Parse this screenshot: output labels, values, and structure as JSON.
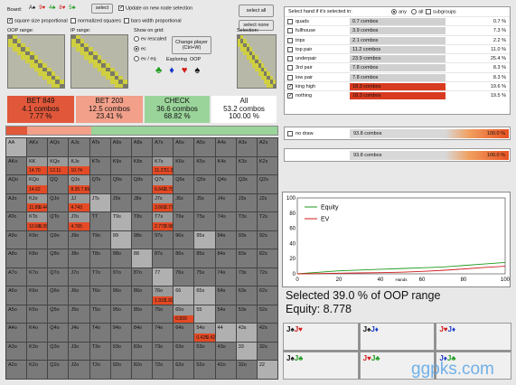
{
  "toolbar": {
    "board_label": "Board:",
    "board_cards": [
      {
        "r": "A",
        "s": "♠",
        "c": "#111"
      },
      {
        "r": "9",
        "s": "♥",
        "c": "#d21b1b"
      },
      {
        "r": "4",
        "s": "♣",
        "c": "#1a9a1a"
      },
      {
        "r": "8",
        "s": "♥",
        "c": "#d21b1b"
      },
      {
        "r": "5",
        "s": "♣",
        "c": "#1a9a1a"
      }
    ],
    "select_btn": "select",
    "update_label": "Update on new node selection",
    "select_all": "select all",
    "select_none": "select none"
  },
  "options": {
    "square_prop": "square size proportional",
    "normalized": "normalized squares",
    "bars_prop": "bars width proportional"
  },
  "labels": {
    "oop_range": "OOP range:",
    "ip_range": "IP range:",
    "show_on_grid": "Show on grid:",
    "selection": "Selection:"
  },
  "show_on_grid": {
    "ev_rescaled": "ev rescaled",
    "ec": "ec",
    "ev_eq": "ev / eq"
  },
  "change_player": "Change player (Ctrl+W)",
  "exploring": {
    "label": "Exploring",
    "player": "OOP"
  },
  "suits": [
    {
      "s": "♣",
      "c": "#1a9a1a"
    },
    {
      "s": "♦",
      "c": "#1638c8"
    },
    {
      "s": "♥",
      "c": "#d21b1b"
    },
    {
      "s": "♠",
      "c": "#111"
    }
  ],
  "actions": [
    {
      "name": "BET 849",
      "combos": "4.1 combos",
      "pct": "7.77 %",
      "bg": "#e0573a",
      "share": 0.0777
    },
    {
      "name": "BET 203",
      "combos": "12.5 combos",
      "pct": "23.41 %",
      "bg": "#f2a08a",
      "share": 0.2341
    },
    {
      "name": "CHECK",
      "combos": "36.6 combos",
      "pct": "68.82 %",
      "bg": "#9ad49a",
      "share": 0.6882
    },
    {
      "name": "All",
      "combos": "53.2 combos",
      "pct": "100.00 %",
      "bg": "#ffffff",
      "share": 1.0
    }
  ],
  "grid": {
    "ranks": [
      "A",
      "K",
      "Q",
      "J",
      "T",
      "9",
      "8",
      "7",
      "6",
      "5",
      "4",
      "3",
      "2"
    ],
    "highlights": [
      {
        "r": 1,
        "c": 1,
        "values": [
          "14.70"
        ]
      },
      {
        "r": 1,
        "c": 2,
        "values": [
          "12.11"
        ]
      },
      {
        "r": 1,
        "c": 3,
        "values": [
          "10.74"
        ]
      },
      {
        "r": 1,
        "c": 7,
        "values": [
          "11.27",
          "11.34"
        ]
      },
      {
        "r": 2,
        "c": 1,
        "values": [
          "14.62"
        ]
      },
      {
        "r": 2,
        "c": 3,
        "values": [
          "8.35",
          "7.894"
        ]
      },
      {
        "r": 2,
        "c": 7,
        "values": [
          "6.642",
          "6.752",
          "6.590"
        ]
      },
      {
        "r": 3,
        "c": 1,
        "values": [
          "11.89",
          "9.443"
        ]
      },
      {
        "r": 3,
        "c": 3,
        "values": [
          "4.743"
        ]
      },
      {
        "r": 3,
        "c": 7,
        "values": [
          "3.660",
          "2.778",
          "3.684"
        ]
      },
      {
        "r": 4,
        "c": 1,
        "values": [
          "10.66",
          "8.357"
        ]
      },
      {
        "r": 4,
        "c": 3,
        "values": [
          "4.765"
        ]
      },
      {
        "r": 4,
        "c": 7,
        "values": [
          "2.770",
          "2.980"
        ]
      },
      {
        "r": 8,
        "c": 7,
        "values": [
          "1.932",
          "1.827"
        ]
      },
      {
        "r": 9,
        "c": 8,
        "values": [
          "0.839"
        ]
      },
      {
        "r": 10,
        "c": 9,
        "values": [
          "0.425",
          "0.423"
        ]
      }
    ],
    "light_cells": [
      [
        0,
        0
      ],
      [
        3,
        4
      ],
      [
        4,
        5
      ],
      [
        5,
        5
      ],
      [
        6,
        6
      ],
      [
        7,
        7
      ],
      [
        8,
        8
      ],
      [
        9,
        9
      ],
      [
        10,
        10
      ],
      [
        11,
        11
      ],
      [
        12,
        12
      ],
      [
        5,
        9
      ],
      [
        8,
        9
      ],
      [
        10,
        11
      ]
    ]
  },
  "selected_header": {
    "title": "Select hand if it's selected in:",
    "any": "any",
    "all": "all",
    "subgroups": "subgroups"
  },
  "hand_table": [
    {
      "name": "quads",
      "checked": false,
      "combos": "0.7 combos",
      "pct": "0.7 %",
      "fill": 0.007,
      "color": "#d0d0d0"
    },
    {
      "name": "fullhouse",
      "checked": false,
      "combos": "3.9 combos",
      "pct": "7.3 %",
      "fill": 0.073,
      "color": "#d0d0d0"
    },
    {
      "name": "trips",
      "checked": false,
      "combos": "2.1 combos",
      "pct": "2.2 %",
      "fill": 0.022,
      "color": "#d0d0d0"
    },
    {
      "name": "top pair",
      "checked": false,
      "combos": "11.2 combos",
      "pct": "11.0 %",
      "fill": 0.11,
      "color": "#d0d0d0"
    },
    {
      "name": "underpair",
      "checked": false,
      "combos": "23.9 combos",
      "pct": "25.4 %",
      "fill": 0.254,
      "color": "#d0d0d0"
    },
    {
      "name": "3rd pair",
      "checked": false,
      "combos": "7.8 combos",
      "pct": "8.3 %",
      "fill": 0.083,
      "color": "#d0d0d0"
    },
    {
      "name": "low pair",
      "checked": false,
      "combos": "7.8 combos",
      "pct": "8.3 %",
      "fill": 0.083,
      "color": "#d0d0d0"
    },
    {
      "name": "king high",
      "checked": true,
      "combos": "18.3 combos",
      "pct": "19.6 %",
      "fill": 1.0,
      "color": "#d83b20"
    },
    {
      "name": "nothing",
      "checked": true,
      "combos": "18.3 combos",
      "pct": "19.5 %",
      "fill": 1.0,
      "color": "#d83b20"
    }
  ],
  "draws": [
    {
      "name": "no draw",
      "checked": false,
      "combos": "93.8 combos",
      "pct": "100.0 %"
    },
    {
      "name": "",
      "checked": false,
      "combos": "93.8 combos",
      "pct": "100.0 %"
    }
  ],
  "chart_data": {
    "type": "line",
    "legend": [
      "Equity",
      "EV"
    ],
    "series": [
      {
        "name": "Equity",
        "color": "#1e9a1e",
        "x": [
          0,
          10,
          20,
          30,
          40,
          50,
          60,
          70,
          80,
          90,
          100
        ],
        "values": [
          0,
          2,
          4,
          5,
          6,
          7,
          8,
          9,
          11,
          13,
          15
        ]
      },
      {
        "name": "EV",
        "color": "#d21b1b",
        "x": [
          0,
          10,
          20,
          30,
          40,
          50,
          60,
          70,
          80,
          90,
          100
        ],
        "values": [
          0,
          0.4,
          0.8,
          1.2,
          1.6,
          2.2,
          3.2,
          4.6,
          6.4,
          8.4,
          10
        ]
      }
    ],
    "xlim": [
      0,
      100
    ],
    "ylim": [
      0,
      100
    ],
    "xticks": [
      "0",
      "20",
      "40",
      "60",
      "80",
      "100"
    ],
    "yticks": [
      "0",
      "20",
      "40",
      "60",
      "80",
      "100"
    ],
    "xlabel": "Hands"
  },
  "summary": {
    "selected": "Selected 39.0 % of OOP range",
    "equity": "Equity: 8.778"
  },
  "hands": [
    [
      {
        "r": "J",
        "s": "♠",
        "c": "#111"
      },
      {
        "r": "J",
        "s": "♥",
        "c": "#d21b1b"
      }
    ],
    [
      {
        "r": "J",
        "s": "♠",
        "c": "#111"
      },
      {
        "r": "J",
        "s": "♦",
        "c": "#1638c8"
      }
    ],
    [
      {
        "r": "J",
        "s": "♥",
        "c": "#d21b1b"
      },
      {
        "r": "J",
        "s": "♦",
        "c": "#1638c8"
      }
    ],
    [
      {
        "r": "J",
        "s": "♠",
        "c": "#111"
      },
      {
        "r": "J",
        "s": "♣",
        "c": "#1a9a1a"
      }
    ],
    [
      {
        "r": "J",
        "s": "♥",
        "c": "#d21b1b"
      },
      {
        "r": "J",
        "s": "♣",
        "c": "#1a9a1a"
      }
    ],
    [
      {
        "r": "J",
        "s": "♦",
        "c": "#1638c8"
      },
      {
        "r": "J",
        "s": "♣",
        "c": "#1a9a1a"
      }
    ]
  ],
  "watermark": "ggpks.com"
}
